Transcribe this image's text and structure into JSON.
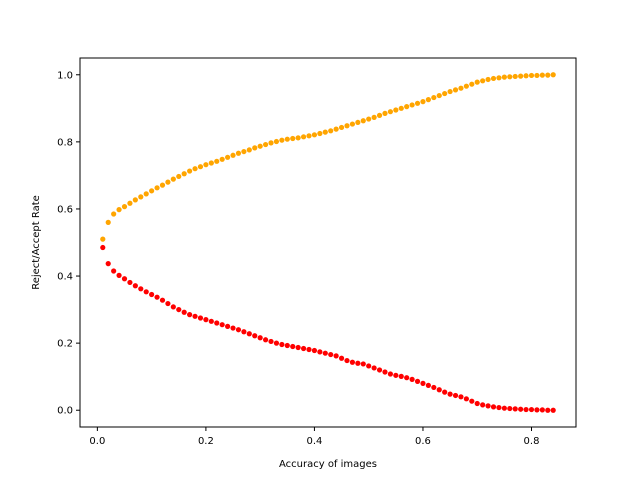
{
  "chart_data": {
    "type": "scatter",
    "title": "",
    "xlabel": "Accuracy of images",
    "ylabel": "Reject/Accept Rate",
    "xlim": [
      -0.032,
      0.882
    ],
    "ylim": [
      -0.05,
      1.05
    ],
    "xticks": [
      "0.0",
      "0.2",
      "0.4",
      "0.6",
      "0.8"
    ],
    "yticks": [
      "0.0",
      "0.2",
      "0.4",
      "0.6",
      "0.8",
      "1.0"
    ],
    "grid": false,
    "legend": "none",
    "series": [
      {
        "color": "#ffa500",
        "points": [
          [
            0.01,
            0.51
          ],
          [
            0.02,
            0.56
          ],
          [
            0.03,
            0.585
          ],
          [
            0.04,
            0.598
          ],
          [
            0.05,
            0.607
          ],
          [
            0.06,
            0.617
          ],
          [
            0.07,
            0.627
          ],
          [
            0.08,
            0.636
          ],
          [
            0.09,
            0.645
          ],
          [
            0.1,
            0.654
          ],
          [
            0.11,
            0.663
          ],
          [
            0.12,
            0.671
          ],
          [
            0.13,
            0.68
          ],
          [
            0.14,
            0.689
          ],
          [
            0.15,
            0.697
          ],
          [
            0.16,
            0.705
          ],
          [
            0.17,
            0.713
          ],
          [
            0.18,
            0.72
          ],
          [
            0.19,
            0.726
          ],
          [
            0.2,
            0.732
          ],
          [
            0.21,
            0.737
          ],
          [
            0.22,
            0.742
          ],
          [
            0.23,
            0.748
          ],
          [
            0.24,
            0.754
          ],
          [
            0.25,
            0.76
          ],
          [
            0.26,
            0.766
          ],
          [
            0.27,
            0.771
          ],
          [
            0.28,
            0.776
          ],
          [
            0.29,
            0.782
          ],
          [
            0.3,
            0.787
          ],
          [
            0.31,
            0.792
          ],
          [
            0.32,
            0.797
          ],
          [
            0.33,
            0.801
          ],
          [
            0.34,
            0.805
          ],
          [
            0.35,
            0.808
          ],
          [
            0.36,
            0.81
          ],
          [
            0.37,
            0.812
          ],
          [
            0.38,
            0.815
          ],
          [
            0.39,
            0.818
          ],
          [
            0.4,
            0.821
          ],
          [
            0.41,
            0.825
          ],
          [
            0.42,
            0.829
          ],
          [
            0.43,
            0.833
          ],
          [
            0.44,
            0.838
          ],
          [
            0.45,
            0.843
          ],
          [
            0.46,
            0.848
          ],
          [
            0.47,
            0.853
          ],
          [
            0.48,
            0.858
          ],
          [
            0.49,
            0.863
          ],
          [
            0.5,
            0.868
          ],
          [
            0.51,
            0.873
          ],
          [
            0.52,
            0.879
          ],
          [
            0.53,
            0.885
          ],
          [
            0.54,
            0.89
          ],
          [
            0.55,
            0.895
          ],
          [
            0.56,
            0.9
          ],
          [
            0.57,
            0.905
          ],
          [
            0.58,
            0.91
          ],
          [
            0.59,
            0.915
          ],
          [
            0.6,
            0.92
          ],
          [
            0.61,
            0.926
          ],
          [
            0.62,
            0.932
          ],
          [
            0.63,
            0.938
          ],
          [
            0.64,
            0.944
          ],
          [
            0.65,
            0.95
          ],
          [
            0.66,
            0.955
          ],
          [
            0.67,
            0.96
          ],
          [
            0.68,
            0.966
          ],
          [
            0.69,
            0.972
          ],
          [
            0.7,
            0.978
          ],
          [
            0.71,
            0.982
          ],
          [
            0.72,
            0.986
          ],
          [
            0.73,
            0.989
          ],
          [
            0.74,
            0.991
          ],
          [
            0.75,
            0.993
          ],
          [
            0.76,
            0.994
          ],
          [
            0.77,
            0.995
          ],
          [
            0.78,
            0.996
          ],
          [
            0.79,
            0.997
          ],
          [
            0.8,
            0.998
          ],
          [
            0.81,
            0.998
          ],
          [
            0.82,
            0.999
          ],
          [
            0.83,
            0.999
          ],
          [
            0.84,
            1.0
          ]
        ]
      },
      {
        "color": "#ff0000",
        "points": [
          [
            0.01,
            0.485
          ],
          [
            0.02,
            0.437
          ],
          [
            0.03,
            0.415
          ],
          [
            0.04,
            0.402
          ],
          [
            0.05,
            0.392
          ],
          [
            0.06,
            0.381
          ],
          [
            0.07,
            0.371
          ],
          [
            0.08,
            0.362
          ],
          [
            0.09,
            0.353
          ],
          [
            0.1,
            0.345
          ],
          [
            0.11,
            0.337
          ],
          [
            0.12,
            0.328
          ],
          [
            0.13,
            0.318
          ],
          [
            0.14,
            0.308
          ],
          [
            0.15,
            0.3
          ],
          [
            0.16,
            0.292
          ],
          [
            0.17,
            0.285
          ],
          [
            0.18,
            0.28
          ],
          [
            0.19,
            0.275
          ],
          [
            0.2,
            0.27
          ],
          [
            0.21,
            0.265
          ],
          [
            0.22,
            0.26
          ],
          [
            0.23,
            0.255
          ],
          [
            0.24,
            0.25
          ],
          [
            0.25,
            0.245
          ],
          [
            0.26,
            0.24
          ],
          [
            0.27,
            0.234
          ],
          [
            0.28,
            0.228
          ],
          [
            0.29,
            0.222
          ],
          [
            0.3,
            0.216
          ],
          [
            0.31,
            0.21
          ],
          [
            0.32,
            0.205
          ],
          [
            0.33,
            0.2
          ],
          [
            0.34,
            0.196
          ],
          [
            0.35,
            0.193
          ],
          [
            0.36,
            0.19
          ],
          [
            0.37,
            0.187
          ],
          [
            0.38,
            0.184
          ],
          [
            0.39,
            0.181
          ],
          [
            0.4,
            0.178
          ],
          [
            0.41,
            0.174
          ],
          [
            0.42,
            0.17
          ],
          [
            0.43,
            0.166
          ],
          [
            0.44,
            0.162
          ],
          [
            0.45,
            0.155
          ],
          [
            0.46,
            0.148
          ],
          [
            0.47,
            0.143
          ],
          [
            0.48,
            0.14
          ],
          [
            0.49,
            0.138
          ],
          [
            0.5,
            0.132
          ],
          [
            0.51,
            0.126
          ],
          [
            0.52,
            0.12
          ],
          [
            0.53,
            0.114
          ],
          [
            0.54,
            0.108
          ],
          [
            0.55,
            0.104
          ],
          [
            0.56,
            0.101
          ],
          [
            0.57,
            0.097
          ],
          [
            0.58,
            0.092
          ],
          [
            0.59,
            0.086
          ],
          [
            0.6,
            0.08
          ],
          [
            0.61,
            0.074
          ],
          [
            0.62,
            0.068
          ],
          [
            0.63,
            0.061
          ],
          [
            0.64,
            0.054
          ],
          [
            0.65,
            0.048
          ],
          [
            0.66,
            0.044
          ],
          [
            0.67,
            0.04
          ],
          [
            0.68,
            0.034
          ],
          [
            0.69,
            0.027
          ],
          [
            0.7,
            0.02
          ],
          [
            0.71,
            0.016
          ],
          [
            0.72,
            0.013
          ],
          [
            0.73,
            0.01
          ],
          [
            0.74,
            0.008
          ],
          [
            0.75,
            0.006
          ],
          [
            0.76,
            0.005
          ],
          [
            0.77,
            0.004
          ],
          [
            0.78,
            0.003
          ],
          [
            0.79,
            0.002
          ],
          [
            0.8,
            0.002
          ],
          [
            0.81,
            0.001
          ],
          [
            0.82,
            0.001
          ],
          [
            0.83,
            0.0
          ],
          [
            0.84,
            0.0
          ]
        ]
      }
    ]
  }
}
